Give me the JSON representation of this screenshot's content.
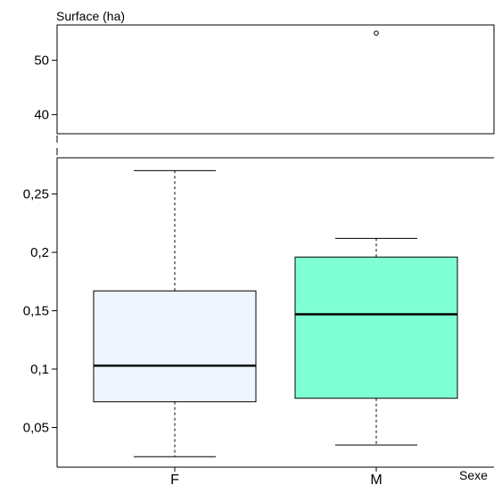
{
  "chart_data": {
    "type": "boxplot",
    "ylabel": "Surface (ha)",
    "xlabel": "Sexe",
    "categories": [
      "F",
      "M"
    ],
    "y_axis_break": true,
    "upper_panel": {
      "ylim": [
        36.5,
        56.5
      ],
      "ticks": [
        40,
        50
      ],
      "tick_labels": [
        "40",
        "50"
      ]
    },
    "lower_panel": {
      "ylim": [
        0.016,
        0.281
      ],
      "ticks": [
        0.05,
        0.1,
        0.15,
        0.2,
        0.25
      ],
      "tick_labels": [
        "0,05",
        "0,1",
        "0,15",
        "0,2",
        "0,25"
      ]
    },
    "boxes": [
      {
        "category": "F",
        "whisker_low": 0.025,
        "q1": 0.072,
        "median": 0.103,
        "q3": 0.167,
        "whisker_high": 0.27,
        "outliers": [],
        "color": "#EEF5FE"
      },
      {
        "category": "M",
        "whisker_low": 0.035,
        "q1": 0.075,
        "median": 0.147,
        "q3": 0.196,
        "whisker_high": 0.212,
        "outliers": [
          55
        ],
        "color": "#7FFFD4"
      }
    ],
    "grid": false,
    "legend": "none"
  }
}
